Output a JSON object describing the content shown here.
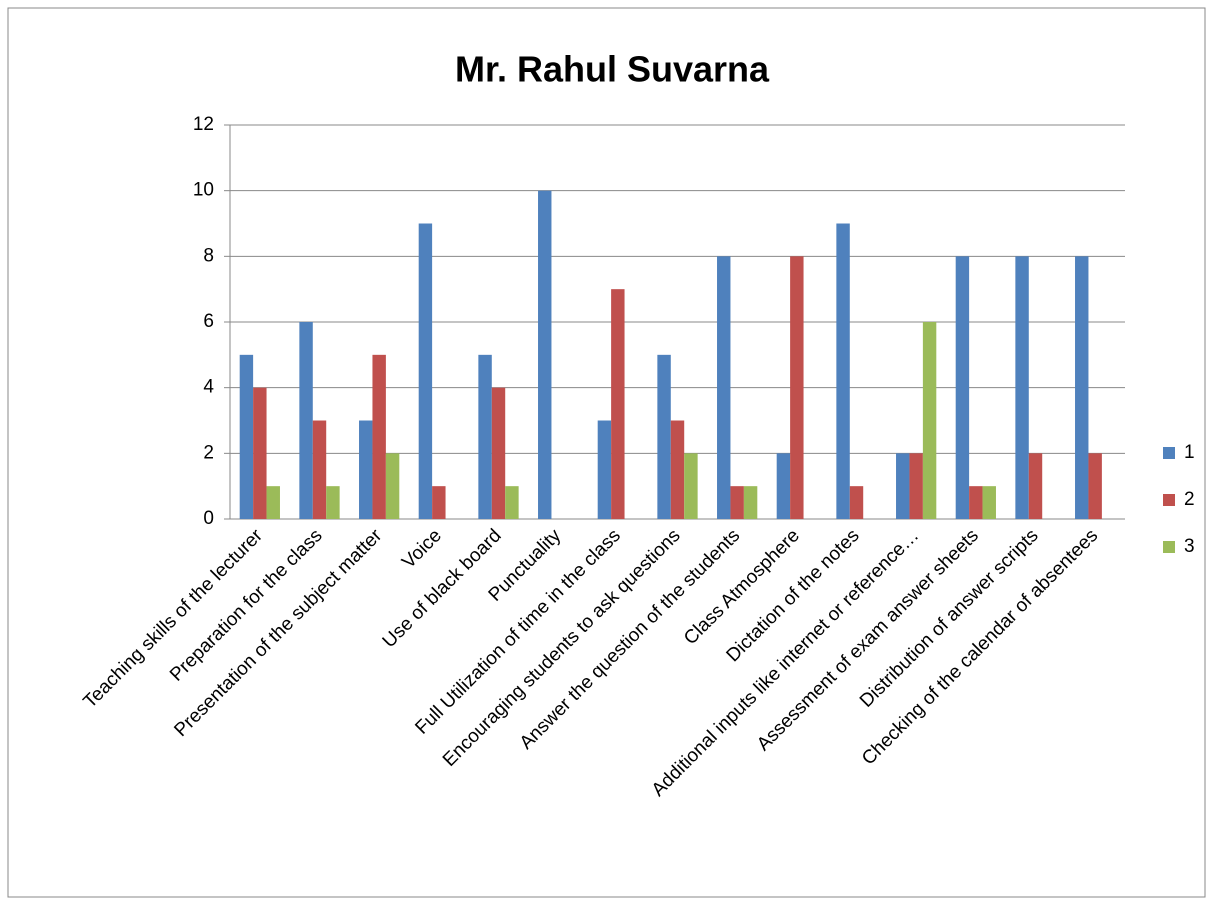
{
  "chart_data": {
    "type": "bar",
    "title": "Mr. Rahul Suvarna",
    "categories": [
      "Teaching skills of the lecturer",
      "Preparation for the class",
      "Presentation of the subject matter",
      "Voice",
      "Use of black board",
      "Punctuality",
      "Full Utilization of time in the class",
      "Encouraging students to ask questions",
      "Answer the question of the students",
      "Class Atmosphere",
      "Dictation of the notes",
      "Additional inputs like internet or reference…",
      "Assessment of exam answer sheets",
      "Distribution of answer scripts",
      "Checking of the calendar of absentees"
    ],
    "series": [
      {
        "name": "1",
        "color": "#4f81bd",
        "values": [
          5,
          6,
          3,
          9,
          5,
          10,
          3,
          5,
          8,
          2,
          9,
          2,
          8,
          8,
          8
        ]
      },
      {
        "name": "2",
        "color": "#c0504d",
        "values": [
          4,
          3,
          5,
          1,
          4,
          0,
          7,
          3,
          1,
          8,
          1,
          2,
          1,
          2,
          2
        ]
      },
      {
        "name": "3",
        "color": "#9bbb59",
        "values": [
          1,
          1,
          2,
          0,
          1,
          0,
          0,
          2,
          1,
          0,
          0,
          6,
          1,
          0,
          0
        ]
      }
    ],
    "ylim": [
      0,
      12
    ],
    "yticks": [
      0,
      2,
      4,
      6,
      8,
      10,
      12
    ],
    "grid": true,
    "legend": "right"
  }
}
